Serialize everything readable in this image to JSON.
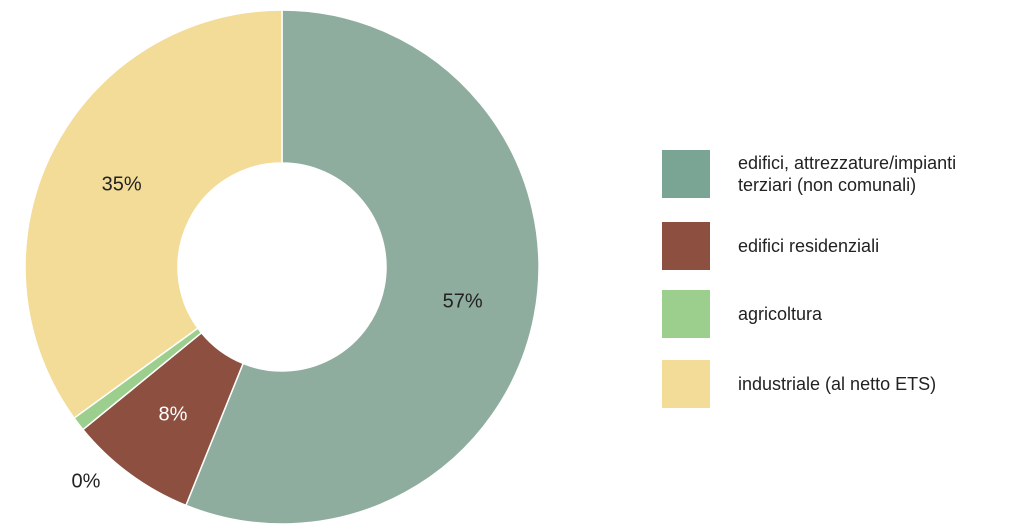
{
  "chart_data": {
    "type": "pie",
    "title": "",
    "categories": [
      "edifici, attrezzature/impianti terziari (non comunali)",
      "edifici residenziali",
      "agricoltura",
      "industriale (al netto ETS)"
    ],
    "values": [
      57,
      8,
      0,
      35
    ],
    "data_labels": [
      "57%",
      "8%",
      "0%",
      "35%"
    ],
    "legend_position": "right",
    "donut": true
  },
  "colors": {
    "slices": [
      "#8fad9f",
      "#8c4f40",
      "#9ccf8e",
      "#f3dc97"
    ],
    "legend": [
      "#7aa595",
      "#8c4f40",
      "#9ccf8e",
      "#f3dc97"
    ],
    "label_text": [
      "#222222",
      "#ffffff",
      "#222222",
      "#222222"
    ]
  },
  "legend": {
    "items": [
      {
        "label": "edifici, attrezzature/impianti\nterziari (non comunali)"
      },
      {
        "label": "edifici residenziali"
      },
      {
        "label": "agricoltura"
      },
      {
        "label": "industriale (al netto ETS)"
      }
    ]
  }
}
